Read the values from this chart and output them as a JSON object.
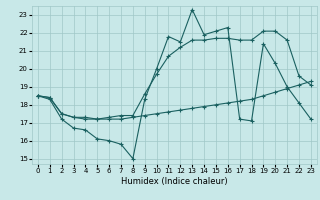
{
  "xlabel": "Humidex (Indice chaleur)",
  "bg_color": "#c8e8e8",
  "grid_color": "#a0c8c8",
  "line_color": "#1a6060",
  "xlim": [
    -0.5,
    23.5
  ],
  "ylim": [
    14.7,
    23.5
  ],
  "xticks": [
    0,
    1,
    2,
    3,
    4,
    5,
    6,
    7,
    8,
    9,
    10,
    11,
    12,
    13,
    14,
    15,
    16,
    17,
    18,
    19,
    20,
    21,
    22,
    23
  ],
  "yticks": [
    15,
    16,
    17,
    18,
    19,
    20,
    21,
    22,
    23
  ],
  "series1_x": [
    0,
    1,
    2,
    3,
    4,
    5,
    6,
    7,
    8,
    9,
    10,
    11,
    12,
    13,
    14,
    15,
    16,
    17,
    18,
    19,
    20,
    21,
    22,
    23
  ],
  "series1_y": [
    18.5,
    18.3,
    17.2,
    16.7,
    16.6,
    16.1,
    16.0,
    15.8,
    15.0,
    18.3,
    20.0,
    21.8,
    21.5,
    23.3,
    21.9,
    22.1,
    22.3,
    17.2,
    17.1,
    21.4,
    20.3,
    19.0,
    18.1,
    17.2
  ],
  "series2_x": [
    0,
    1,
    2,
    3,
    4,
    5,
    6,
    7,
    8,
    9,
    10,
    11,
    12,
    13,
    14,
    15,
    16,
    17,
    18,
    19,
    20,
    21,
    22,
    23
  ],
  "series2_y": [
    18.5,
    18.4,
    17.5,
    17.3,
    17.2,
    17.2,
    17.2,
    17.2,
    17.3,
    17.4,
    17.5,
    17.6,
    17.7,
    17.8,
    17.9,
    18.0,
    18.1,
    18.2,
    18.3,
    18.5,
    18.7,
    18.9,
    19.1,
    19.3
  ],
  "series3_x": [
    0,
    1,
    2,
    3,
    4,
    5,
    6,
    7,
    8,
    9,
    10,
    11,
    12,
    13,
    14,
    15,
    16,
    17,
    18,
    19,
    20,
    21,
    22,
    23
  ],
  "series3_y": [
    18.5,
    18.4,
    17.5,
    17.3,
    17.3,
    17.2,
    17.3,
    17.4,
    17.4,
    18.6,
    19.7,
    20.7,
    21.2,
    21.6,
    21.6,
    21.7,
    21.7,
    21.6,
    21.6,
    22.1,
    22.1,
    21.6,
    19.6,
    19.1
  ],
  "xlabel_fontsize": 6,
  "tick_fontsize": 5
}
